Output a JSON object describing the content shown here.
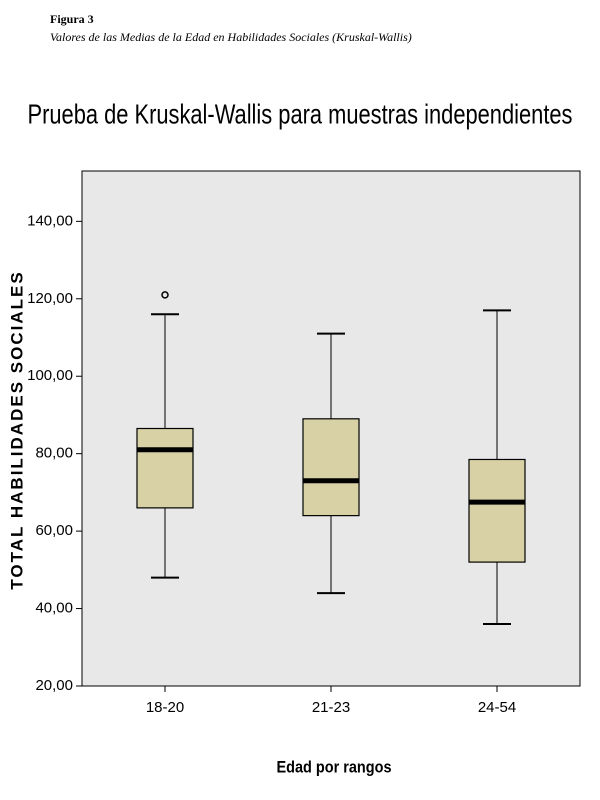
{
  "figure_label": "Figura 3",
  "caption": "Valores de las Medias de la Edad en Habilidades Sociales (Kruskal-Wallis)",
  "chart_data": {
    "type": "box",
    "title": "Prueba de Kruskal-Wallis para muestras independientes",
    "x_label": "Edad por rangos",
    "y_label": "TOTAL HABILIDADES SOCIALES",
    "categories": [
      "18-20",
      "21-23",
      "24-54"
    ],
    "boxes": [
      {
        "min": 48,
        "q1": 66,
        "median": 81,
        "q3": 86.5,
        "max": 116,
        "outliers": [
          121
        ]
      },
      {
        "min": 44,
        "q1": 64,
        "median": 73,
        "q3": 89,
        "max": 111
      },
      {
        "min": 36,
        "q1": 52,
        "median": 67.5,
        "q3": 78.5,
        "max": 117
      }
    ],
    "color": "#d7d1a5",
    "ylim": [
      20,
      153
    ],
    "yticks": [
      {
        "value": 20,
        "label": "20,00"
      },
      {
        "value": 40,
        "label": "40,00"
      },
      {
        "value": 60,
        "label": "60,00"
      },
      {
        "value": 80,
        "label": "80,00"
      },
      {
        "value": 100,
        "label": "100,00"
      },
      {
        "value": 120,
        "label": "120,00"
      },
      {
        "value": 140,
        "label": "140,00"
      }
    ]
  }
}
